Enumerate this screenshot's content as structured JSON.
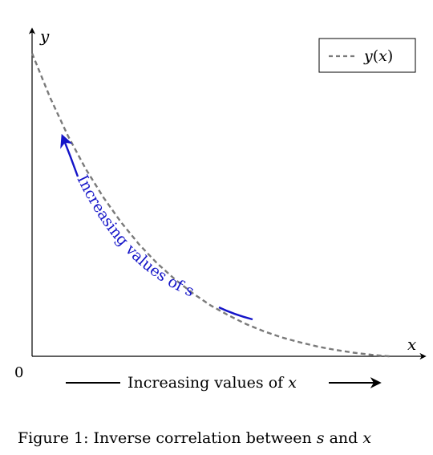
{
  "chart_data": {
    "type": "line",
    "series": [
      {
        "name": "y(x)",
        "style": "dashed",
        "color": "#7a7a7a",
        "x": [
          0.0,
          0.05,
          0.1,
          0.15,
          0.2,
          0.25,
          0.3,
          0.35,
          0.4,
          0.45,
          0.5,
          0.55,
          0.6,
          0.65,
          0.7,
          0.75,
          0.8,
          0.85,
          0.9,
          0.95,
          1.0
        ],
        "y": [
          1.0,
          0.855,
          0.729,
          0.619,
          0.524,
          0.441,
          0.369,
          0.307,
          0.254,
          0.208,
          0.168,
          0.135,
          0.106,
          0.082,
          0.062,
          0.046,
          0.032,
          0.021,
          0.012,
          0.005,
          0.0
        ]
      }
    ],
    "xlim": [
      0,
      1.1
    ],
    "ylim": [
      0,
      1.07
    ],
    "grid": false,
    "legend": {
      "position": "top-right",
      "entry_name": "y",
      "entry_arg": "x"
    },
    "axes": {
      "x_label": "x",
      "y_label": "y",
      "origin_label": "0"
    },
    "annotations": {
      "curve_arrow": {
        "text": "Increasing values of s",
        "color": "#1414c8",
        "direction": "toward upper-left along curve"
      },
      "x_arrow": {
        "text_prefix": "Increasing values of",
        "variable": "x"
      }
    }
  },
  "caption": {
    "prefix": "Figure 1: Inverse correlation between",
    "var1": "s",
    "conj": "and",
    "var2": "x"
  }
}
